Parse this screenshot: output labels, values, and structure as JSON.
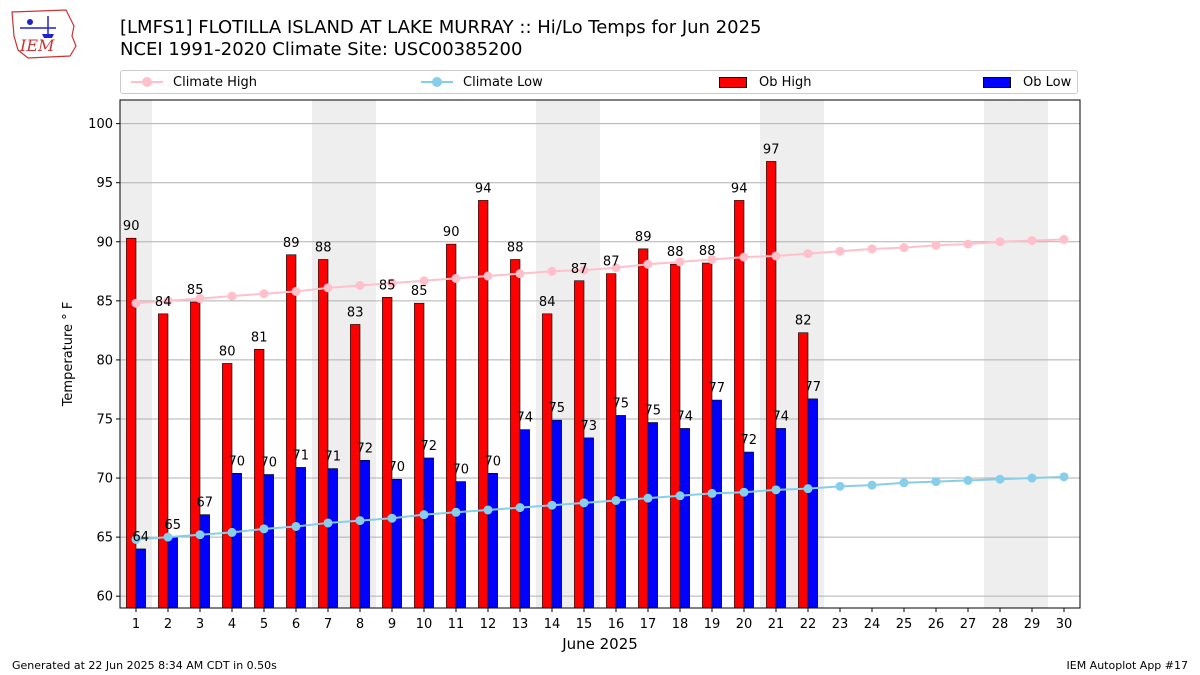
{
  "header": {
    "title_line1": "[LMFS1] FLOTILLA ISLAND AT LAKE MURRAY :: Hi/Lo Temps for Jun 2025",
    "title_line2": "NCEI 1991-2020 Climate Site: USC00385200",
    "logo_text": "IEM"
  },
  "footer": {
    "generated": "Generated at 22 Jun 2025 8:34 AM CDT in 0.50s",
    "app": "IEM Autoplot App #17"
  },
  "colors": {
    "ob_high": "#ff0000",
    "ob_low": "#0000ff",
    "climate_high": "#ffc0cb",
    "climate_low": "#87ceeb",
    "weekend_shade": "#eeeeee",
    "grid": "#b0b0b0"
  },
  "chart_data": {
    "type": "bar",
    "title": "[LMFS1] FLOTILLA ISLAND AT LAKE MURRAY :: Hi/Lo Temps for Jun 2025",
    "subtitle": "NCEI 1991-2020 Climate Site: USC00385200",
    "xlabel": "June 2025",
    "ylabel": "Temperature ° F",
    "ylim": [
      59,
      102
    ],
    "xlim": [
      0.5,
      30.5
    ],
    "yticks": [
      60,
      65,
      70,
      75,
      80,
      85,
      90,
      95,
      100
    ],
    "grid": "horizontal",
    "legend_position": "top",
    "days": [
      1,
      2,
      3,
      4,
      5,
      6,
      7,
      8,
      9,
      10,
      11,
      12,
      13,
      14,
      15,
      16,
      17,
      18,
      19,
      20,
      21,
      22,
      23,
      24,
      25,
      26,
      27,
      28,
      29,
      30
    ],
    "shaded_days": [
      1,
      7,
      8,
      14,
      15,
      21,
      22,
      28,
      29
    ],
    "series": [
      {
        "name": "Climate High",
        "kind": "line",
        "values": [
          84.8,
          85.0,
          85.2,
          85.4,
          85.6,
          85.8,
          86.1,
          86.3,
          86.5,
          86.7,
          86.9,
          87.1,
          87.3,
          87.5,
          87.6,
          87.8,
          88.1,
          88.3,
          88.5,
          88.7,
          88.8,
          89.0,
          89.2,
          89.4,
          89.5,
          89.7,
          89.8,
          90.0,
          90.1,
          90.2
        ]
      },
      {
        "name": "Climate Low",
        "kind": "line",
        "values": [
          64.8,
          65.0,
          65.2,
          65.4,
          65.7,
          65.9,
          66.2,
          66.4,
          66.6,
          66.9,
          67.1,
          67.3,
          67.5,
          67.7,
          67.9,
          68.1,
          68.3,
          68.5,
          68.7,
          68.8,
          69.0,
          69.1,
          69.3,
          69.4,
          69.6,
          69.7,
          69.8,
          69.9,
          70.0,
          70.1
        ]
      },
      {
        "name": "Ob High",
        "kind": "bar",
        "values": [
          90.3,
          83.9,
          84.9,
          79.7,
          80.9,
          88.9,
          88.5,
          83.0,
          85.3,
          84.8,
          89.8,
          93.5,
          88.5,
          83.9,
          86.7,
          87.3,
          89.4,
          88.1,
          88.2,
          93.5,
          96.8,
          82.3
        ],
        "labels": [
          "90",
          "84",
          "85",
          "80",
          "81",
          "89",
          "88",
          "83",
          "85",
          "85",
          "90",
          "94",
          "88",
          "84",
          "87",
          "87",
          "89",
          "88",
          "88",
          "94",
          "97",
          "82"
        ]
      },
      {
        "name": "Ob Low",
        "kind": "bar",
        "values": [
          64.0,
          65.0,
          66.9,
          70.4,
          70.3,
          70.9,
          70.8,
          71.5,
          69.9,
          71.7,
          69.7,
          70.4,
          74.1,
          74.9,
          73.4,
          75.3,
          74.7,
          74.2,
          76.6,
          72.2,
          74.2,
          76.7
        ],
        "labels": [
          "64",
          "65",
          "67",
          "70",
          "70",
          "71",
          "71",
          "72",
          "70",
          "72",
          "70",
          "70",
          "74",
          "75",
          "73",
          "75",
          "75",
          "74",
          "77",
          "72",
          "74",
          "77"
        ]
      }
    ]
  }
}
